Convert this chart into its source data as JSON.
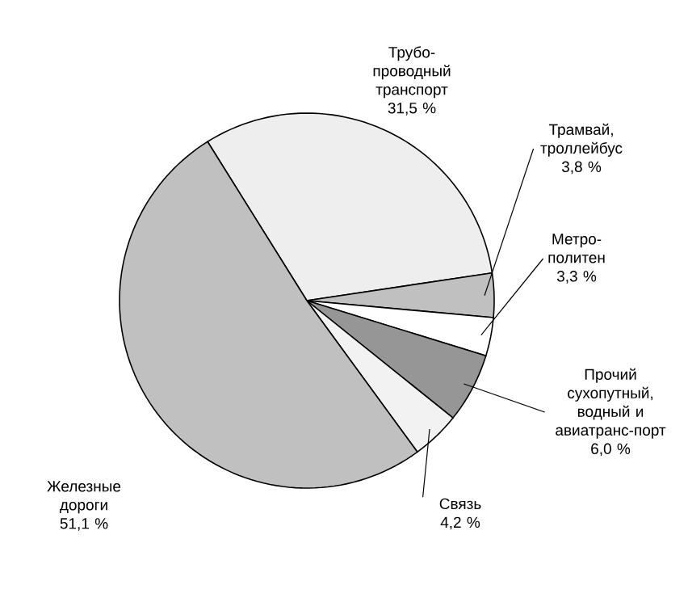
{
  "chart_data": {
    "type": "pie",
    "categories": [
      "Трубо-проводный транспорт",
      "Трамвай, троллейбус",
      "Метро-политен",
      "Прочий сухопутный, водный и авиатранс-порт",
      "Связь",
      "Железные дороги"
    ],
    "values": [
      31.5,
      3.8,
      3.3,
      6.0,
      4.2,
      51.1
    ],
    "value_labels": [
      "31,5 %",
      "3,8 %",
      "3,3 %",
      "6,0 %",
      "4,2 %",
      "51,1 %"
    ],
    "colors": [
      "#eeeeee",
      "#c0c0c0",
      "#ffffff",
      "#969696",
      "#f2f2f2",
      "#c0c0c0"
    ]
  }
}
